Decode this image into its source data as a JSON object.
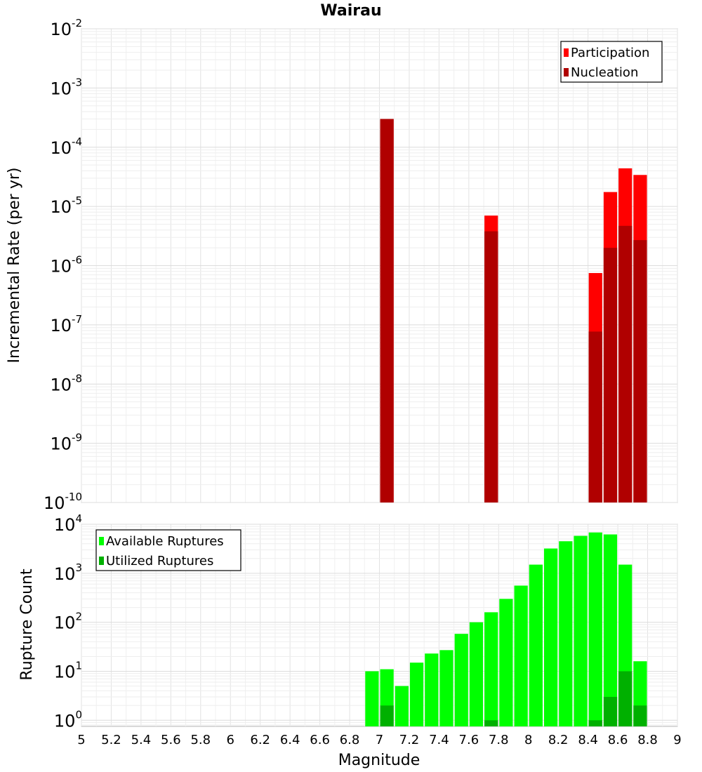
{
  "chart_data": [
    {
      "type": "bar",
      "title": "Wairau",
      "xlabel": "Magnitude",
      "ylabel": "Incremental Rate (per yr)",
      "yscale": "log",
      "xlim": [
        5,
        9
      ],
      "ylim": [
        1e-10,
        0.01
      ],
      "ytick_exponents": [
        "-2",
        "-3",
        "-4",
        "-5",
        "-6",
        "-7",
        "-8",
        "-9",
        "-10"
      ],
      "legend_position": "top-right",
      "grid": true,
      "series": [
        {
          "name": "Participation",
          "color": "#ff0000",
          "x": [
            7.05,
            7.75,
            8.45,
            8.55,
            8.65,
            8.75
          ],
          "values": [
            0.0003,
            7e-06,
            7.5e-07,
            1.75e-05,
            4.4e-05,
            3.4e-05
          ]
        },
        {
          "name": "Nucleation",
          "color": "#b00000",
          "x": [
            7.05,
            7.75,
            8.45,
            8.55,
            8.65,
            8.75
          ],
          "values": [
            0.0003,
            3.8e-06,
            7.7e-08,
            2e-06,
            4.7e-06,
            2.7e-06
          ]
        }
      ]
    },
    {
      "type": "bar",
      "title": "",
      "xlabel": "Magnitude",
      "ylabel": "Rupture Count",
      "yscale": "log",
      "xlim": [
        5,
        9
      ],
      "ylim": [
        0.75,
        10000
      ],
      "ytick_exponents": [
        "0",
        "1",
        "2",
        "3",
        "4"
      ],
      "xticks": [
        "5",
        "5.2",
        "5.4",
        "5.6",
        "5.8",
        "6",
        "6.2",
        "6.4",
        "6.6",
        "6.8",
        "7",
        "7.2",
        "7.4",
        "7.6",
        "7.8",
        "8",
        "8.2",
        "8.4",
        "8.6",
        "8.8",
        "9"
      ],
      "legend_position": "top-left",
      "grid": true,
      "series": [
        {
          "name": "Available Ruptures",
          "color": "#00ff00",
          "x": [
            6.95,
            7.05,
            7.15,
            7.25,
            7.35,
            7.45,
            7.55,
            7.65,
            7.75,
            7.85,
            7.95,
            8.05,
            8.15,
            8.25,
            8.35,
            8.45,
            8.55,
            8.65,
            8.75
          ],
          "values": [
            10,
            11,
            5,
            15,
            23,
            27,
            58,
            100,
            160,
            300,
            560,
            1500,
            3200,
            4500,
            5800,
            6800,
            6200,
            1500,
            16
          ]
        },
        {
          "name": "Utilized Ruptures",
          "color": "#00b000",
          "x": [
            7.05,
            7.75,
            8.45,
            8.55,
            8.65,
            8.75
          ],
          "values": [
            2,
            1,
            1,
            3,
            10,
            2
          ]
        }
      ]
    }
  ]
}
